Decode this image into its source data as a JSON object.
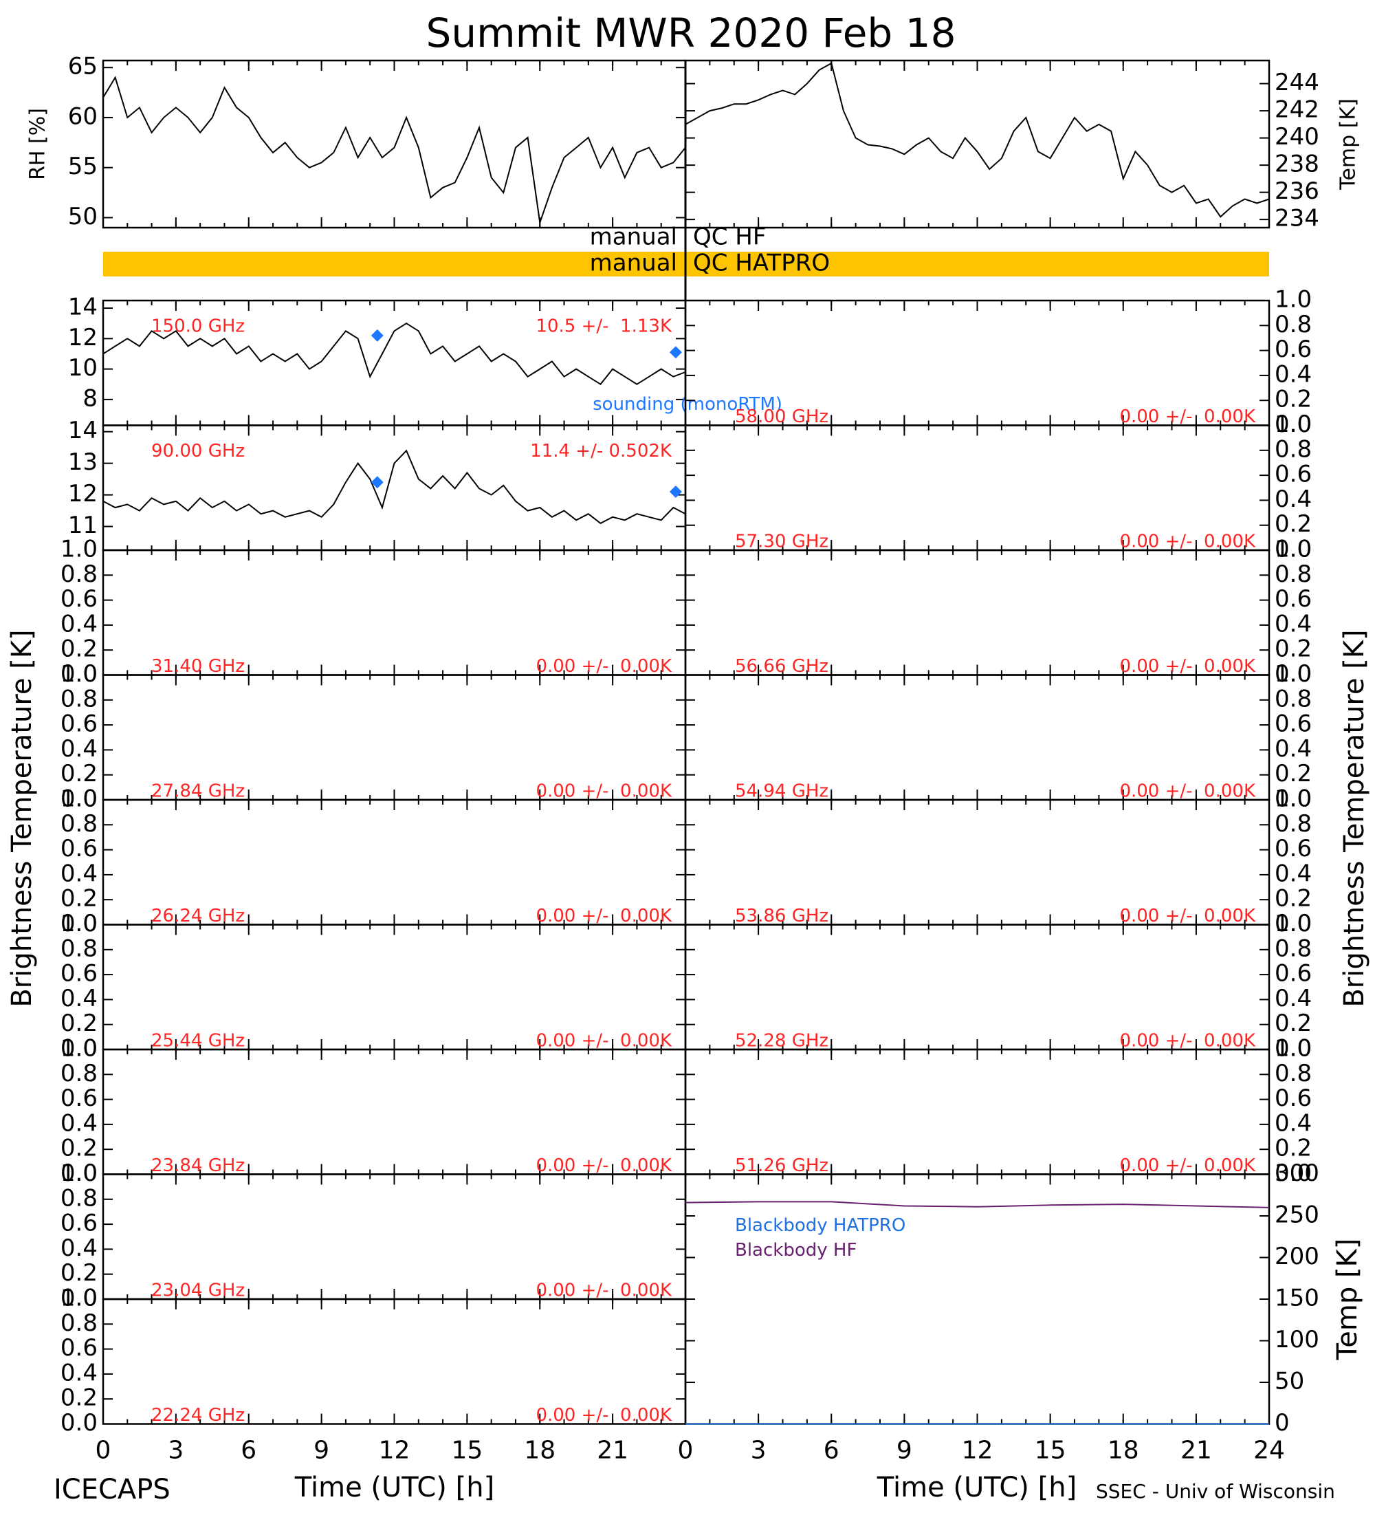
{
  "title": "Summit MWR 2020 Feb 18",
  "labels": {
    "bt_left": "Brightness Temperature [K]",
    "bt_right": "Brightness Temperature [K]",
    "time_left": "Time (UTC) [h]",
    "time_right": "Time (UTC) [h]",
    "footer_left": "ICECAPS",
    "footer_right": "SSEC - Univ of Wisconsin"
  },
  "qc": [
    {
      "left": "manual",
      "right": "QC HF"
    },
    {
      "left": "manual",
      "right": "QC HATPRO",
      "color": "#ffc400"
    }
  ],
  "chart_data": [
    {
      "type": "line",
      "ylabel": "RH [%]",
      "yside": "left",
      "xlim": [
        0,
        24
      ],
      "xticks": [
        0,
        3,
        6,
        9,
        12,
        15,
        18,
        21,
        24
      ],
      "xminor": 1,
      "ylim": [
        49,
        65.7
      ],
      "yticks": [
        50,
        55,
        60,
        65
      ],
      "series": [
        {
          "color": "#000000",
          "x": [
            0,
            0.5,
            1,
            1.5,
            2,
            2.5,
            3,
            3.5,
            4,
            4.5,
            5,
            5.5,
            6,
            6.5,
            7,
            7.5,
            8,
            8.5,
            9,
            9.5,
            10,
            10.5,
            11,
            11.5,
            12,
            12.5,
            13,
            13.5,
            14,
            14.5,
            15,
            15.5,
            16,
            16.5,
            17,
            17.5,
            18,
            18.5,
            19,
            19.5,
            20,
            20.5,
            21,
            21.5,
            22,
            22.5,
            23,
            23.5,
            24
          ],
          "values": [
            62,
            64,
            60,
            61,
            58.5,
            60,
            61,
            60,
            58.5,
            60,
            63,
            61,
            60,
            58,
            56.5,
            57.5,
            56,
            55,
            55.5,
            56.5,
            59,
            56,
            58,
            56,
            57,
            60,
            57,
            52,
            53,
            53.5,
            56,
            59,
            54,
            52.5,
            57,
            58,
            49.5,
            53,
            56,
            57,
            58,
            55,
            57,
            54,
            56.5,
            57,
            55,
            55.5,
            57
          ]
        }
      ]
    },
    {
      "type": "line",
      "ylabel": "Temp [K]",
      "yside": "right",
      "xlim": [
        0,
        24
      ],
      "xticks": [
        0,
        3,
        6,
        9,
        12,
        15,
        18,
        21,
        24
      ],
      "xminor": 1,
      "ylim": [
        233.4,
        245.7
      ],
      "yticks": [
        234,
        236,
        238,
        240,
        242,
        244
      ],
      "series": [
        {
          "color": "#000000",
          "x": [
            0,
            0.5,
            1,
            1.5,
            2,
            2.5,
            3,
            3.5,
            4,
            4.5,
            5,
            5.5,
            6,
            6.5,
            7,
            7.5,
            8,
            8.5,
            9,
            9.5,
            10,
            10.5,
            11,
            11.5,
            12,
            12.5,
            13,
            13.5,
            14,
            14.5,
            15,
            15.5,
            16,
            16.5,
            17,
            17.5,
            18,
            18.5,
            19,
            19.5,
            20,
            20.5,
            21,
            21.5,
            22,
            22.5,
            23,
            23.5,
            24
          ],
          "values": [
            241,
            241.5,
            242,
            242.2,
            242.5,
            242.5,
            242.8,
            243.2,
            243.5,
            243.2,
            244,
            245,
            245.5,
            242,
            240,
            239.5,
            239.4,
            239.2,
            238.8,
            239.5,
            240,
            239,
            238.5,
            240,
            239,
            237.7,
            238.5,
            240.5,
            241.5,
            239,
            238.5,
            240,
            241.5,
            240.5,
            241,
            240.5,
            237,
            239,
            238,
            236.5,
            236,
            236.5,
            235.2,
            235.5,
            234.2,
            235,
            235.5,
            235.2,
            235.5
          ]
        }
      ]
    },
    {
      "type": "line",
      "label": "150.0 GHz",
      "stats": "10.5 +/-  1.13K",
      "yside": "left",
      "xlim": [
        0,
        24
      ],
      "xticks": [
        0,
        3,
        6,
        9,
        12,
        15,
        18,
        21,
        24
      ],
      "xminor": 1,
      "ylim": [
        6.3,
        14.5
      ],
      "yticks": [
        8,
        10,
        12,
        14
      ],
      "series": [
        {
          "color": "#000000",
          "x": [
            0,
            0.5,
            1,
            1.5,
            2,
            2.5,
            3,
            3.5,
            4,
            4.5,
            5,
            5.5,
            6,
            6.5,
            7,
            7.5,
            8,
            8.5,
            9,
            9.5,
            10,
            10.5,
            11,
            11.5,
            12,
            12.5,
            13,
            13.5,
            14,
            14.5,
            15,
            15.5,
            16,
            16.5,
            17,
            17.5,
            18,
            18.5,
            19,
            19.5,
            20,
            20.5,
            21,
            21.5,
            22,
            22.5,
            23,
            23.5,
            24
          ],
          "values": [
            11,
            11.5,
            12,
            11.5,
            12.5,
            12,
            12.5,
            11.5,
            12,
            11.5,
            12,
            11,
            11.5,
            10.5,
            11,
            10.5,
            11,
            10,
            10.5,
            11.5,
            12.5,
            12,
            9.5,
            11,
            12.5,
            13,
            12.5,
            11,
            11.5,
            10.5,
            11,
            11.5,
            10.5,
            11,
            10.5,
            9.5,
            10,
            10.5,
            9.5,
            10,
            9.5,
            9,
            10,
            9.5,
            9,
            9.5,
            10,
            9.5,
            9.8
          ]
        },
        {
          "name": "sounding (monoRTM)",
          "marker": "diamond",
          "color": "#1e78ff",
          "x": [
            11.3,
            23.6
          ],
          "values": [
            12.2,
            11.1
          ]
        }
      ]
    },
    {
      "type": "line",
      "label": "90.00 GHz",
      "stats": "11.4 +/- 0.502K",
      "yside": "left",
      "xlim": [
        0,
        24
      ],
      "xticks": [
        0,
        3,
        6,
        9,
        12,
        15,
        18,
        21,
        24
      ],
      "xminor": 1,
      "ylim": [
        10.25,
        14.2
      ],
      "yticks": [
        11,
        12,
        13,
        14
      ],
      "series": [
        {
          "color": "#000000",
          "x": [
            0,
            0.5,
            1,
            1.5,
            2,
            2.5,
            3,
            3.5,
            4,
            4.5,
            5,
            5.5,
            6,
            6.5,
            7,
            7.5,
            8,
            8.5,
            9,
            9.5,
            10,
            10.5,
            11,
            11.5,
            12,
            12.5,
            13,
            13.5,
            14,
            14.5,
            15,
            15.5,
            16,
            16.5,
            17,
            17.5,
            18,
            18.5,
            19,
            19.5,
            20,
            20.5,
            21,
            21.5,
            22,
            22.5,
            23,
            23.5,
            24
          ],
          "values": [
            11.8,
            11.6,
            11.7,
            11.5,
            11.9,
            11.7,
            11.8,
            11.5,
            11.9,
            11.6,
            11.8,
            11.5,
            11.7,
            11.4,
            11.5,
            11.3,
            11.4,
            11.5,
            11.3,
            11.7,
            12.4,
            13,
            12.5,
            11.6,
            13,
            13.4,
            12.5,
            12.2,
            12.6,
            12.2,
            12.7,
            12.2,
            12,
            12.3,
            11.8,
            11.5,
            11.6,
            11.3,
            11.5,
            11.2,
            11.4,
            11.1,
            11.3,
            11.2,
            11.4,
            11.3,
            11.2,
            11.6,
            11.4
          ]
        },
        {
          "marker": "diamond",
          "color": "#1e78ff",
          "x": [
            11.3,
            23.6
          ],
          "values": [
            12.4,
            12.1
          ]
        }
      ]
    },
    {
      "type": "line",
      "label": "31.40 GHz",
      "stats": "0.00 +/-  0.00K",
      "yside": "left",
      "xlim": [
        0,
        24
      ],
      "xticks": [
        0,
        3,
        6,
        9,
        12,
        15,
        18,
        21,
        24
      ],
      "xminor": 1,
      "ylim": [
        0,
        1
      ],
      "yticks": [
        {
          "value": 0,
          "label": "0.0"
        },
        0.2,
        0.4,
        0.6,
        0.8,
        {
          "value": 1,
          "label": "1.0"
        }
      ],
      "series": []
    },
    {
      "type": "line",
      "label": "27.84 GHz",
      "stats": "0.00 +/-  0.00K",
      "yside": "left",
      "xlim": [
        0,
        24
      ],
      "xticks": [
        0,
        3,
        6,
        9,
        12,
        15,
        18,
        21,
        24
      ],
      "xminor": 1,
      "ylim": [
        0,
        1
      ],
      "yticks": [
        {
          "value": 0,
          "label": "0.0"
        },
        0.2,
        0.4,
        0.6,
        0.8,
        {
          "value": 1,
          "label": "1.0"
        }
      ],
      "series": []
    },
    {
      "type": "line",
      "label": "26.24 GHz",
      "stats": "0.00 +/-  0.00K",
      "yside": "left",
      "xlim": [
        0,
        24
      ],
      "xticks": [
        0,
        3,
        6,
        9,
        12,
        15,
        18,
        21,
        24
      ],
      "xminor": 1,
      "ylim": [
        0,
        1
      ],
      "yticks": [
        {
          "value": 0,
          "label": "0.0"
        },
        0.2,
        0.4,
        0.6,
        0.8,
        {
          "value": 1,
          "label": "1.0"
        }
      ],
      "series": []
    },
    {
      "type": "line",
      "label": "25.44 GHz",
      "stats": "0.00 +/-  0.00K",
      "yside": "left",
      "xlim": [
        0,
        24
      ],
      "xticks": [
        0,
        3,
        6,
        9,
        12,
        15,
        18,
        21,
        24
      ],
      "xminor": 1,
      "ylim": [
        0,
        1
      ],
      "yticks": [
        {
          "value": 0,
          "label": "0.0"
        },
        0.2,
        0.4,
        0.6,
        0.8,
        {
          "value": 1,
          "label": "1.0"
        }
      ],
      "series": []
    },
    {
      "type": "line",
      "label": "23.84 GHz",
      "stats": "0.00 +/-  0.00K",
      "yside": "left",
      "xlim": [
        0,
        24
      ],
      "xticks": [
        0,
        3,
        6,
        9,
        12,
        15,
        18,
        21,
        24
      ],
      "xminor": 1,
      "ylim": [
        0,
        1
      ],
      "yticks": [
        {
          "value": 0,
          "label": "0.0"
        },
        0.2,
        0.4,
        0.6,
        0.8,
        {
          "value": 1,
          "label": "1.0"
        }
      ],
      "series": []
    },
    {
      "type": "line",
      "label": "23.04 GHz",
      "stats": "0.00 +/-  0.00K",
      "yside": "left",
      "xlim": [
        0,
        24
      ],
      "xticks": [
        0,
        3,
        6,
        9,
        12,
        15,
        18,
        21,
        24
      ],
      "xminor": 1,
      "ylim": [
        0,
        1
      ],
      "yticks": [
        {
          "value": 0,
          "label": "0.0"
        },
        0.2,
        0.4,
        0.6,
        0.8,
        {
          "value": 1,
          "label": "1.0"
        }
      ],
      "series": []
    },
    {
      "type": "line",
      "label": "22.24 GHz",
      "stats": "0.00 +/-  0.00K",
      "yside": "left",
      "xlim": [
        0,
        24
      ],
      "xticks": [
        0,
        3,
        6,
        9,
        12,
        15,
        18,
        21
      ],
      "xtick_labels": true,
      "xminor": 1,
      "ylim": [
        0,
        1
      ],
      "yticks": [
        {
          "value": 0,
          "label": "0.0"
        },
        0.2,
        0.4,
        0.6,
        0.8,
        {
          "value": 1,
          "label": "1.0"
        }
      ],
      "series": []
    },
    {
      "type": "line",
      "label": "58.00 GHz",
      "stats": "0.00 +/-  0.00K",
      "yside": "right",
      "xlim": [
        0,
        24
      ],
      "xticks": [
        0,
        3,
        6,
        9,
        12,
        15,
        18,
        21,
        24
      ],
      "xminor": 1,
      "ylim": [
        0,
        1
      ],
      "yticks": [
        {
          "value": 0,
          "label": "0.0"
        },
        0.2,
        0.4,
        0.6,
        0.8,
        {
          "value": 1,
          "label": "1.0"
        }
      ],
      "series": []
    },
    {
      "type": "line",
      "label": "57.30 GHz",
      "stats": "0.00 +/-  0.00K",
      "yside": "right",
      "xlim": [
        0,
        24
      ],
      "xticks": [
        0,
        3,
        6,
        9,
        12,
        15,
        18,
        21,
        24
      ],
      "xminor": 1,
      "ylim": [
        0,
        1
      ],
      "yticks": [
        {
          "value": 0,
          "label": "0.0"
        },
        0.2,
        0.4,
        0.6,
        0.8,
        {
          "value": 1,
          "label": "1.0"
        }
      ],
      "series": []
    },
    {
      "type": "line",
      "label": "56.66 GHz",
      "stats": "0.00 +/-  0.00K",
      "yside": "right",
      "xlim": [
        0,
        24
      ],
      "xticks": [
        0,
        3,
        6,
        9,
        12,
        15,
        18,
        21,
        24
      ],
      "xminor": 1,
      "ylim": [
        0,
        1
      ],
      "yticks": [
        {
          "value": 0,
          "label": "0.0"
        },
        0.2,
        0.4,
        0.6,
        0.8,
        {
          "value": 1,
          "label": "1.0"
        }
      ],
      "series": []
    },
    {
      "type": "line",
      "label": "54.94 GHz",
      "stats": "0.00 +/-  0.00K",
      "yside": "right",
      "xlim": [
        0,
        24
      ],
      "xticks": [
        0,
        3,
        6,
        9,
        12,
        15,
        18,
        21,
        24
      ],
      "xminor": 1,
      "ylim": [
        0,
        1
      ],
      "yticks": [
        {
          "value": 0,
          "label": "0.0"
        },
        0.2,
        0.4,
        0.6,
        0.8,
        {
          "value": 1,
          "label": "1.0"
        }
      ],
      "series": []
    },
    {
      "type": "line",
      "label": "53.86 GHz",
      "stats": "0.00 +/-  0.00K",
      "yside": "right",
      "xlim": [
        0,
        24
      ],
      "xticks": [
        0,
        3,
        6,
        9,
        12,
        15,
        18,
        21,
        24
      ],
      "xminor": 1,
      "ylim": [
        0,
        1
      ],
      "yticks": [
        {
          "value": 0,
          "label": "0.0"
        },
        0.2,
        0.4,
        0.6,
        0.8,
        {
          "value": 1,
          "label": "1.0"
        }
      ],
      "series": []
    },
    {
      "type": "line",
      "label": "52.28 GHz",
      "stats": "0.00 +/-  0.00K",
      "yside": "right",
      "xlim": [
        0,
        24
      ],
      "xticks": [
        0,
        3,
        6,
        9,
        12,
        15,
        18,
        21,
        24
      ],
      "xminor": 1,
      "ylim": [
        0,
        1
      ],
      "yticks": [
        {
          "value": 0,
          "label": "0.0"
        },
        0.2,
        0.4,
        0.6,
        0.8,
        {
          "value": 1,
          "label": "1.0"
        }
      ],
      "series": []
    },
    {
      "type": "line",
      "label": "51.26 GHz",
      "stats": "0.00 +/-  0.00K",
      "yside": "right",
      "xlim": [
        0,
        24
      ],
      "xticks": [
        0,
        3,
        6,
        9,
        12,
        15,
        18,
        21,
        24
      ],
      "xminor": 1,
      "ylim": [
        0,
        1
      ],
      "yticks": [
        {
          "value": 0,
          "label": "0.0"
        },
        0.2,
        0.4,
        0.6,
        0.8,
        {
          "value": 1,
          "label": "1.0"
        }
      ],
      "series": []
    },
    {
      "type": "line",
      "ylabel": "Temp [K]",
      "yside": "right",
      "xlim": [
        0,
        24
      ],
      "xticks": [
        0,
        3,
        6,
        9,
        12,
        15,
        18,
        21,
        24
      ],
      "xtick_labels": true,
      "xminor": 1,
      "ylim": [
        0,
        300
      ],
      "yticks": [
        0,
        50,
        100,
        150,
        200,
        250,
        300
      ],
      "legend": true,
      "series": [
        {
          "name": "Blackbody HATPRO",
          "color": "#1e6fe0",
          "x": [
            0,
            24
          ],
          "values": [
            0,
            0
          ]
        },
        {
          "name": "Blackbody HF",
          "color": "#6a2070",
          "x": [
            0,
            3,
            6,
            9,
            12,
            15,
            18,
            21,
            24
          ],
          "values": [
            266,
            267,
            267,
            262,
            261,
            263,
            264,
            262,
            260
          ]
        }
      ]
    }
  ]
}
